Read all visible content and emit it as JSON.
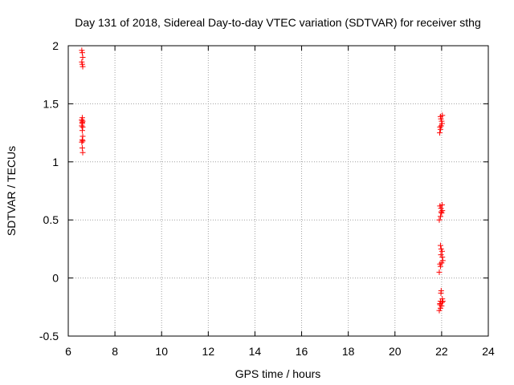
{
  "chart_data": {
    "type": "scatter",
    "title": "Day 131 of 2018, Sidereal Day-to-day VTEC variation (SDTVAR) for receiver sthg",
    "xlabel": "GPS time / hours",
    "ylabel": "SDTVAR / TECUs",
    "xlim": [
      6,
      24
    ],
    "ylim": [
      -0.5,
      2
    ],
    "xticks": [
      6,
      8,
      10,
      12,
      14,
      16,
      18,
      20,
      22,
      24
    ],
    "yticks": [
      -0.5,
      0,
      0.5,
      1,
      1.5,
      2
    ],
    "ytick_labels": [
      "-0.5",
      "0",
      "0.5",
      "1",
      "1.5",
      "2"
    ],
    "grid": true,
    "marker": "+",
    "color": "#ff0000",
    "series": [
      {
        "name": "SDTVAR",
        "x": [
          6.58,
          6.6,
          6.62,
          6.58,
          6.6,
          6.62,
          6.6,
          6.58,
          6.62,
          6.6,
          6.58,
          6.62,
          6.6,
          6.62,
          6.6,
          6.58,
          6.62,
          6.6,
          6.62,
          6.58,
          6.6,
          21.92,
          21.95,
          21.98,
          22.02,
          22.0,
          21.97,
          21.95,
          22.03,
          21.93,
          21.9,
          21.95,
          22.0,
          22.03,
          21.97,
          21.93,
          22.02,
          21.98,
          21.9,
          21.95,
          22.0,
          22.05,
          22.03,
          21.97,
          21.93,
          22.02,
          21.98,
          21.95,
          21.9,
          21.95,
          22.0,
          21.93,
          22.02,
          22.05,
          22.03,
          21.97,
          21.98,
          21.93,
          21.95
        ],
        "y": [
          1.96,
          1.94,
          1.9,
          1.86,
          1.84,
          1.82,
          1.38,
          1.36,
          1.35,
          1.33,
          1.31,
          1.3,
          1.27,
          1.22,
          1.19,
          1.17,
          1.18,
          1.12,
          1.08,
          1.36,
          1.34,
          1.25,
          1.28,
          1.31,
          1.33,
          1.35,
          1.37,
          1.39,
          1.4,
          1.3,
          0.5,
          0.53,
          0.56,
          0.58,
          0.6,
          0.62,
          0.63,
          0.57,
          0.05,
          0.1,
          0.13,
          0.15,
          0.18,
          0.2,
          0.12,
          0.23,
          0.25,
          0.28,
          -0.28,
          -0.26,
          -0.24,
          -0.22,
          -0.21,
          -0.2,
          -0.18,
          -0.13,
          -0.11,
          -0.23,
          -0.2
        ]
      }
    ]
  }
}
